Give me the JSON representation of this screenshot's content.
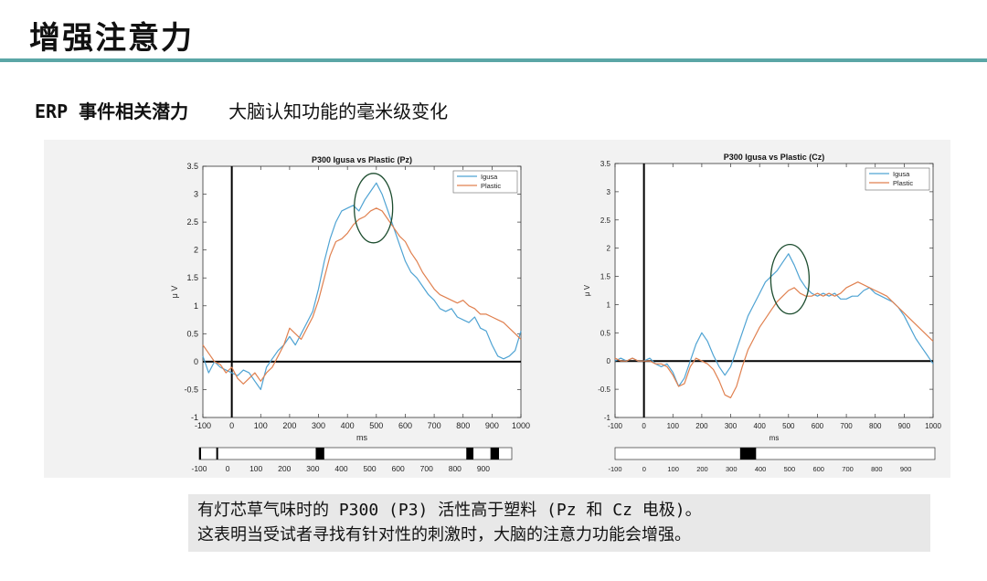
{
  "slide": {
    "title": "增强注意力",
    "subtitle_erp": "ERP 事件相关潜力",
    "subtitle_desc": "大脑认知功能的毫米级变化"
  },
  "caption": {
    "line1": "有灯芯草气味时的 P300 (P3) 活性高于塑料 (Pz 和 Cz 电极)。",
    "line2": "这表明当受试者寻找有针对性的刺激时，大脑的注意力功能会增强。"
  },
  "colors": {
    "igusa": "#4fa3d3",
    "plastic": "#e0804f",
    "rule": "#5ba6a6",
    "circle": "#1d4d2f"
  },
  "chart_data": [
    {
      "type": "line",
      "title": "P300 Igusa vs Plastic (Pz)",
      "xlabel": "ms",
      "ylabel": "μ V",
      "xlim": [
        -100,
        1000
      ],
      "ylim": [
        -1,
        3.5
      ],
      "xticks": [
        -100,
        0,
        100,
        200,
        300,
        400,
        500,
        600,
        700,
        800,
        900,
        1000
      ],
      "yticks": [
        -1,
        -0.5,
        0,
        0.5,
        1,
        1.5,
        2,
        2.5,
        3,
        3.5
      ],
      "legend": "top-right",
      "highlight": {
        "x": 490,
        "y": 2.75
      },
      "significance_bar": {
        "ticks": [
          -100,
          0,
          100,
          200,
          300,
          400,
          500,
          600,
          700,
          800,
          900
        ],
        "marks": [
          [
            -100,
            -95
          ],
          [
            -40,
            -37
          ],
          [
            310,
            340
          ],
          [
            840,
            865
          ],
          [
            925,
            955
          ]
        ]
      },
      "series": [
        {
          "name": "Igusa",
          "x": [
            -100,
            -80,
            -60,
            -40,
            -20,
            0,
            20,
            40,
            60,
            80,
            100,
            120,
            140,
            160,
            180,
            200,
            220,
            240,
            260,
            280,
            300,
            320,
            340,
            360,
            380,
            400,
            420,
            440,
            460,
            480,
            500,
            520,
            540,
            560,
            580,
            600,
            620,
            640,
            660,
            680,
            700,
            720,
            740,
            760,
            780,
            800,
            820,
            840,
            860,
            880,
            900,
            920,
            940,
            960,
            980,
            1000
          ],
          "y": [
            0.1,
            -0.2,
            0.0,
            -0.1,
            -0.15,
            -0.2,
            -0.25,
            -0.15,
            -0.2,
            -0.35,
            -0.5,
            -0.1,
            0.05,
            0.2,
            0.3,
            0.45,
            0.3,
            0.5,
            0.7,
            0.9,
            1.3,
            1.8,
            2.2,
            2.5,
            2.7,
            2.75,
            2.8,
            2.7,
            2.9,
            3.05,
            3.2,
            3.0,
            2.7,
            2.4,
            2.1,
            1.8,
            1.6,
            1.5,
            1.35,
            1.2,
            1.1,
            0.95,
            0.9,
            0.95,
            0.8,
            0.75,
            0.7,
            0.8,
            0.6,
            0.55,
            0.3,
            0.1,
            0.05,
            0.1,
            0.2,
            0.55
          ]
        },
        {
          "name": "Plastic",
          "x": [
            -100,
            -80,
            -60,
            -40,
            -20,
            0,
            20,
            40,
            60,
            80,
            100,
            120,
            140,
            160,
            180,
            200,
            220,
            240,
            260,
            280,
            300,
            320,
            340,
            360,
            380,
            400,
            420,
            440,
            460,
            480,
            500,
            520,
            540,
            560,
            580,
            600,
            620,
            640,
            660,
            680,
            700,
            720,
            740,
            760,
            780,
            800,
            820,
            840,
            860,
            880,
            900,
            920,
            940,
            960,
            980,
            1000
          ],
          "y": [
            0.3,
            0.15,
            0.0,
            -0.05,
            -0.2,
            -0.1,
            -0.3,
            -0.4,
            -0.3,
            -0.2,
            -0.35,
            -0.2,
            -0.1,
            0.1,
            0.3,
            0.6,
            0.5,
            0.4,
            0.6,
            0.8,
            1.1,
            1.5,
            1.9,
            2.15,
            2.2,
            2.3,
            2.45,
            2.55,
            2.6,
            2.7,
            2.75,
            2.7,
            2.55,
            2.4,
            2.25,
            2.15,
            1.95,
            1.8,
            1.6,
            1.45,
            1.3,
            1.2,
            1.15,
            1.1,
            1.05,
            1.1,
            1.0,
            0.95,
            0.85,
            0.85,
            0.8,
            0.75,
            0.7,
            0.6,
            0.5,
            0.4
          ]
        }
      ]
    },
    {
      "type": "line",
      "title": "P300 Igusa vs Plastic (Cz)",
      "xlabel": "ms",
      "ylabel": "μ V",
      "xlim": [
        -100,
        1000
      ],
      "ylim": [
        -1,
        3.5
      ],
      "xticks": [
        -100,
        0,
        100,
        200,
        300,
        400,
        500,
        600,
        700,
        800,
        900,
        1000
      ],
      "yticks": [
        -1,
        -0.5,
        0,
        0.5,
        1,
        1.5,
        2,
        2.5,
        3,
        3.5
      ],
      "legend": "top-right",
      "highlight": {
        "x": 505,
        "y": 1.45
      },
      "significance_bar": {
        "ticks": [
          -100,
          0,
          100,
          200,
          300,
          400,
          500,
          600,
          700,
          800,
          900
        ],
        "marks": [
          [
            330,
            385
          ]
        ]
      },
      "series": [
        {
          "name": "Igusa",
          "x": [
            -100,
            -80,
            -60,
            -40,
            -20,
            0,
            20,
            40,
            60,
            80,
            100,
            120,
            140,
            160,
            180,
            200,
            220,
            240,
            260,
            280,
            300,
            320,
            340,
            360,
            380,
            400,
            420,
            440,
            460,
            480,
            500,
            520,
            540,
            560,
            580,
            600,
            620,
            640,
            660,
            680,
            700,
            720,
            740,
            760,
            780,
            800,
            820,
            840,
            860,
            880,
            900,
            920,
            940,
            960,
            980,
            1000
          ],
          "y": [
            0.0,
            0.05,
            0.0,
            0.05,
            0.0,
            0.0,
            0.05,
            -0.05,
            -0.1,
            -0.05,
            -0.2,
            -0.45,
            -0.3,
            0.0,
            0.3,
            0.5,
            0.35,
            0.1,
            -0.1,
            -0.25,
            -0.1,
            0.2,
            0.5,
            0.8,
            1.0,
            1.2,
            1.4,
            1.5,
            1.6,
            1.75,
            1.9,
            1.7,
            1.45,
            1.3,
            1.2,
            1.15,
            1.2,
            1.15,
            1.2,
            1.1,
            1.1,
            1.15,
            1.15,
            1.25,
            1.3,
            1.2,
            1.15,
            1.1,
            1.05,
            0.95,
            0.8,
            0.6,
            0.4,
            0.25,
            0.1,
            -0.05
          ]
        },
        {
          "name": "Plastic",
          "x": [
            -100,
            -80,
            -60,
            -40,
            -20,
            0,
            20,
            40,
            60,
            80,
            100,
            120,
            140,
            160,
            180,
            200,
            220,
            240,
            260,
            280,
            300,
            320,
            340,
            360,
            380,
            400,
            420,
            440,
            460,
            480,
            500,
            520,
            540,
            560,
            580,
            600,
            620,
            640,
            660,
            680,
            700,
            720,
            740,
            760,
            780,
            800,
            820,
            840,
            860,
            880,
            900,
            920,
            940,
            960,
            980,
            1000
          ],
          "y": [
            0.05,
            0.0,
            0.0,
            0.05,
            0.0,
            0.0,
            0.0,
            -0.05,
            -0.05,
            -0.1,
            -0.25,
            -0.45,
            -0.4,
            -0.1,
            0.05,
            0.0,
            -0.05,
            -0.15,
            -0.35,
            -0.6,
            -0.65,
            -0.45,
            -0.1,
            0.2,
            0.4,
            0.6,
            0.75,
            0.9,
            1.05,
            1.15,
            1.25,
            1.3,
            1.2,
            1.15,
            1.15,
            1.2,
            1.15,
            1.2,
            1.15,
            1.2,
            1.3,
            1.35,
            1.4,
            1.35,
            1.3,
            1.25,
            1.2,
            1.15,
            1.05,
            0.95,
            0.85,
            0.75,
            0.65,
            0.55,
            0.45,
            0.35
          ]
        }
      ]
    }
  ]
}
